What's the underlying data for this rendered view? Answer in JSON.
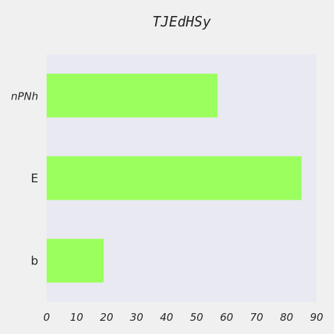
{
  "chart_data": {
    "type": "bar",
    "orientation": "horizontal",
    "title": "TJEdHSy",
    "xlabel": "",
    "ylabel": "",
    "categories": [
      "nPNh",
      "E",
      "b"
    ],
    "values": [
      57,
      85,
      19
    ],
    "xlim": [
      0,
      90
    ],
    "xticks": [
      "0",
      "10",
      "20",
      "30",
      "40",
      "50",
      "60",
      "70",
      "80",
      "90"
    ],
    "grid": false,
    "colors": {
      "bar": "#9bff5e",
      "plot_background": "#e9e9f2",
      "page_background": "#f0f0f0",
      "text": "#262626"
    }
  }
}
